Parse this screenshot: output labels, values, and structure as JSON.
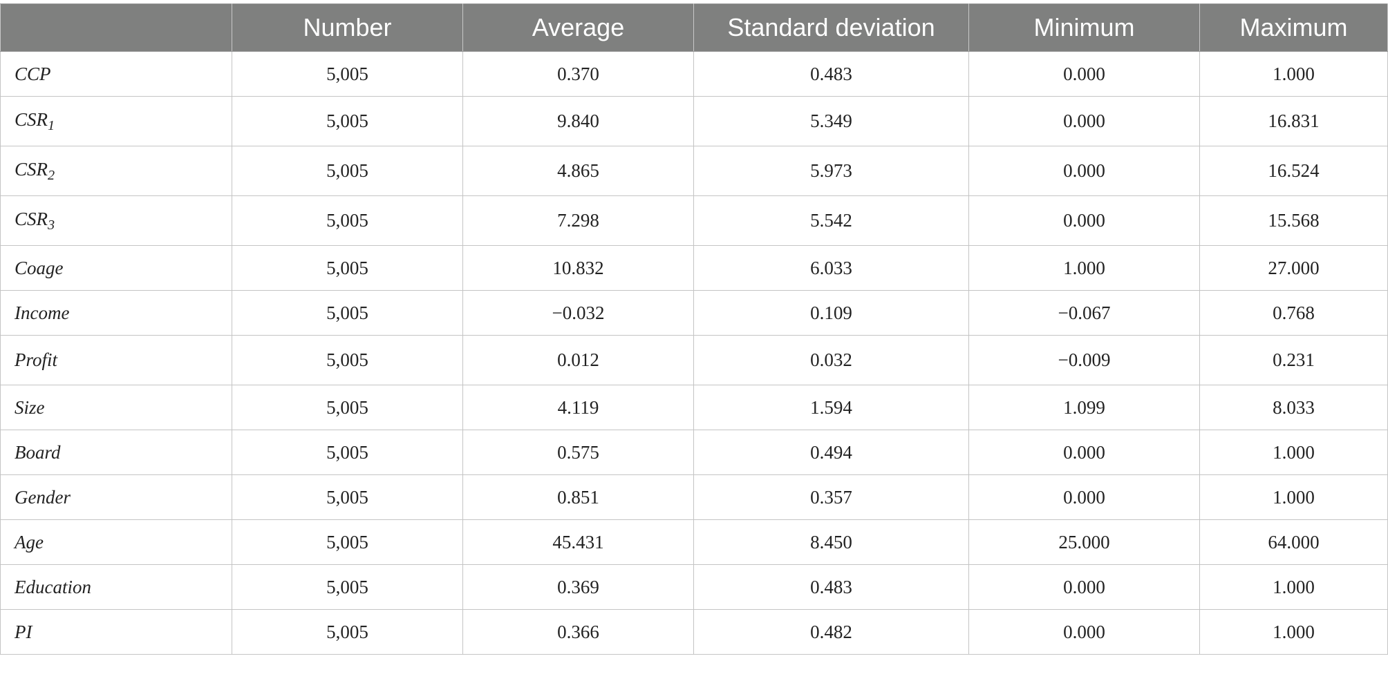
{
  "table": {
    "headers": [
      "",
      "Number",
      "Average",
      "Standard deviation",
      "Minimum",
      "Maximum"
    ],
    "rows": [
      {
        "label": "CCP",
        "sub": "",
        "values": [
          "5,005",
          "0.370",
          "0.483",
          "0.000",
          "1.000"
        ]
      },
      {
        "label": "CSR",
        "sub": "1",
        "values": [
          "5,005",
          "9.840",
          "5.349",
          "0.000",
          "16.831"
        ]
      },
      {
        "label": "CSR",
        "sub": "2",
        "values": [
          "5,005",
          "4.865",
          "5.973",
          "0.000",
          "16.524"
        ]
      },
      {
        "label": "CSR",
        "sub": "3",
        "values": [
          "5,005",
          "7.298",
          "5.542",
          "0.000",
          "15.568"
        ]
      },
      {
        "label": "Coage",
        "sub": "",
        "values": [
          "5,005",
          "10.832",
          "6.033",
          "1.000",
          "27.000"
        ]
      },
      {
        "label": "Income",
        "sub": "",
        "values": [
          "5,005",
          "−0.032",
          "0.109",
          "−0.067",
          "0.768"
        ]
      },
      {
        "label": "Profit",
        "sub": "",
        "values": [
          "5,005",
          "0.012",
          "0.032",
          "−0.009",
          "0.231"
        ]
      },
      {
        "label": "Size",
        "sub": "",
        "values": [
          "5,005",
          "4.119",
          "1.594",
          "1.099",
          "8.033"
        ]
      },
      {
        "label": "Board",
        "sub": "",
        "values": [
          "5,005",
          "0.575",
          "0.494",
          "0.000",
          "1.000"
        ]
      },
      {
        "label": "Gender",
        "sub": "",
        "values": [
          "5,005",
          "0.851",
          "0.357",
          "0.000",
          "1.000"
        ]
      },
      {
        "label": "Age",
        "sub": "",
        "values": [
          "5,005",
          "45.431",
          "8.450",
          "25.000",
          "64.000"
        ]
      },
      {
        "label": "Education",
        "sub": "",
        "values": [
          "5,005",
          "0.369",
          "0.483",
          "0.000",
          "1.000"
        ]
      },
      {
        "label": "PI",
        "sub": "",
        "values": [
          "5,005",
          "0.366",
          "0.482",
          "0.000",
          "1.000"
        ]
      }
    ]
  },
  "colors": {
    "header_bg": "#7f807f",
    "header_text": "#ffffff",
    "grid": "#c4c4c4"
  }
}
